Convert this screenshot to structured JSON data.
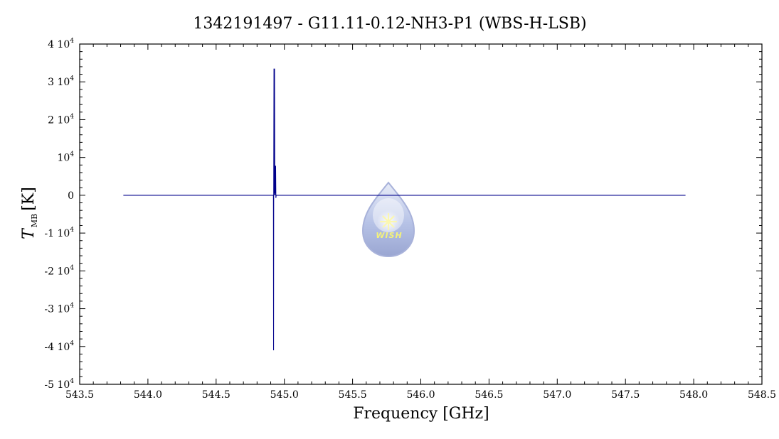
{
  "chart_data": {
    "type": "line",
    "title": "1342191497 - G11.11-0.12-NH3-P1 (WBS-H-LSB)",
    "xlabel": "Frequency [GHz]",
    "ylabel": {
      "symbol": "T",
      "subscript": "MB",
      "unit": "[K]"
    },
    "xlim": [
      543.5,
      548.5
    ],
    "ylim": [
      -50000,
      40000
    ],
    "x_ticks": [
      {
        "value": 543.5,
        "label": "543.5"
      },
      {
        "value": 544.0,
        "label": "544.0"
      },
      {
        "value": 544.5,
        "label": "544.5"
      },
      {
        "value": 545.0,
        "label": "545.0"
      },
      {
        "value": 545.5,
        "label": "545.5"
      },
      {
        "value": 546.0,
        "label": "546.0"
      },
      {
        "value": 546.5,
        "label": "546.5"
      },
      {
        "value": 547.0,
        "label": "547.0"
      },
      {
        "value": 547.5,
        "label": "547.5"
      },
      {
        "value": 548.0,
        "label": "548.0"
      },
      {
        "value": 548.5,
        "label": "548.5"
      }
    ],
    "y_ticks": [
      {
        "value": 40000,
        "coef": "4 10",
        "exp": "4"
      },
      {
        "value": 30000,
        "coef": "3 10",
        "exp": "4"
      },
      {
        "value": 20000,
        "coef": "2 10",
        "exp": "4"
      },
      {
        "value": 10000,
        "coef": "10",
        "exp": "4"
      },
      {
        "value": 0,
        "coef": "0",
        "exp": ""
      },
      {
        "value": -10000,
        "coef": "-1 10",
        "exp": "4"
      },
      {
        "value": -20000,
        "coef": "-2 10",
        "exp": "4"
      },
      {
        "value": -30000,
        "coef": "-3 10",
        "exp": "4"
      },
      {
        "value": -40000,
        "coef": "-4 10",
        "exp": "4"
      },
      {
        "value": -50000,
        "coef": "-5 10",
        "exp": "4"
      }
    ],
    "series": [
      {
        "color": "#00008b",
        "x": [
          543.82,
          544.92,
          544.921,
          544.922,
          544.924,
          544.926,
          544.928,
          544.93,
          544.932,
          544.934,
          544.936,
          544.938,
          544.94,
          544.95,
          547.94
        ],
        "y": [
          0,
          0,
          -41000,
          0,
          33500,
          0,
          33500,
          500,
          7800,
          0,
          7800,
          -700,
          0,
          0,
          0
        ]
      }
    ],
    "grid": false,
    "logo": {
      "text": "WISH"
    },
    "colors": {
      "line": "#00008b",
      "spike": "#0000ff",
      "frame": "#000000"
    }
  }
}
